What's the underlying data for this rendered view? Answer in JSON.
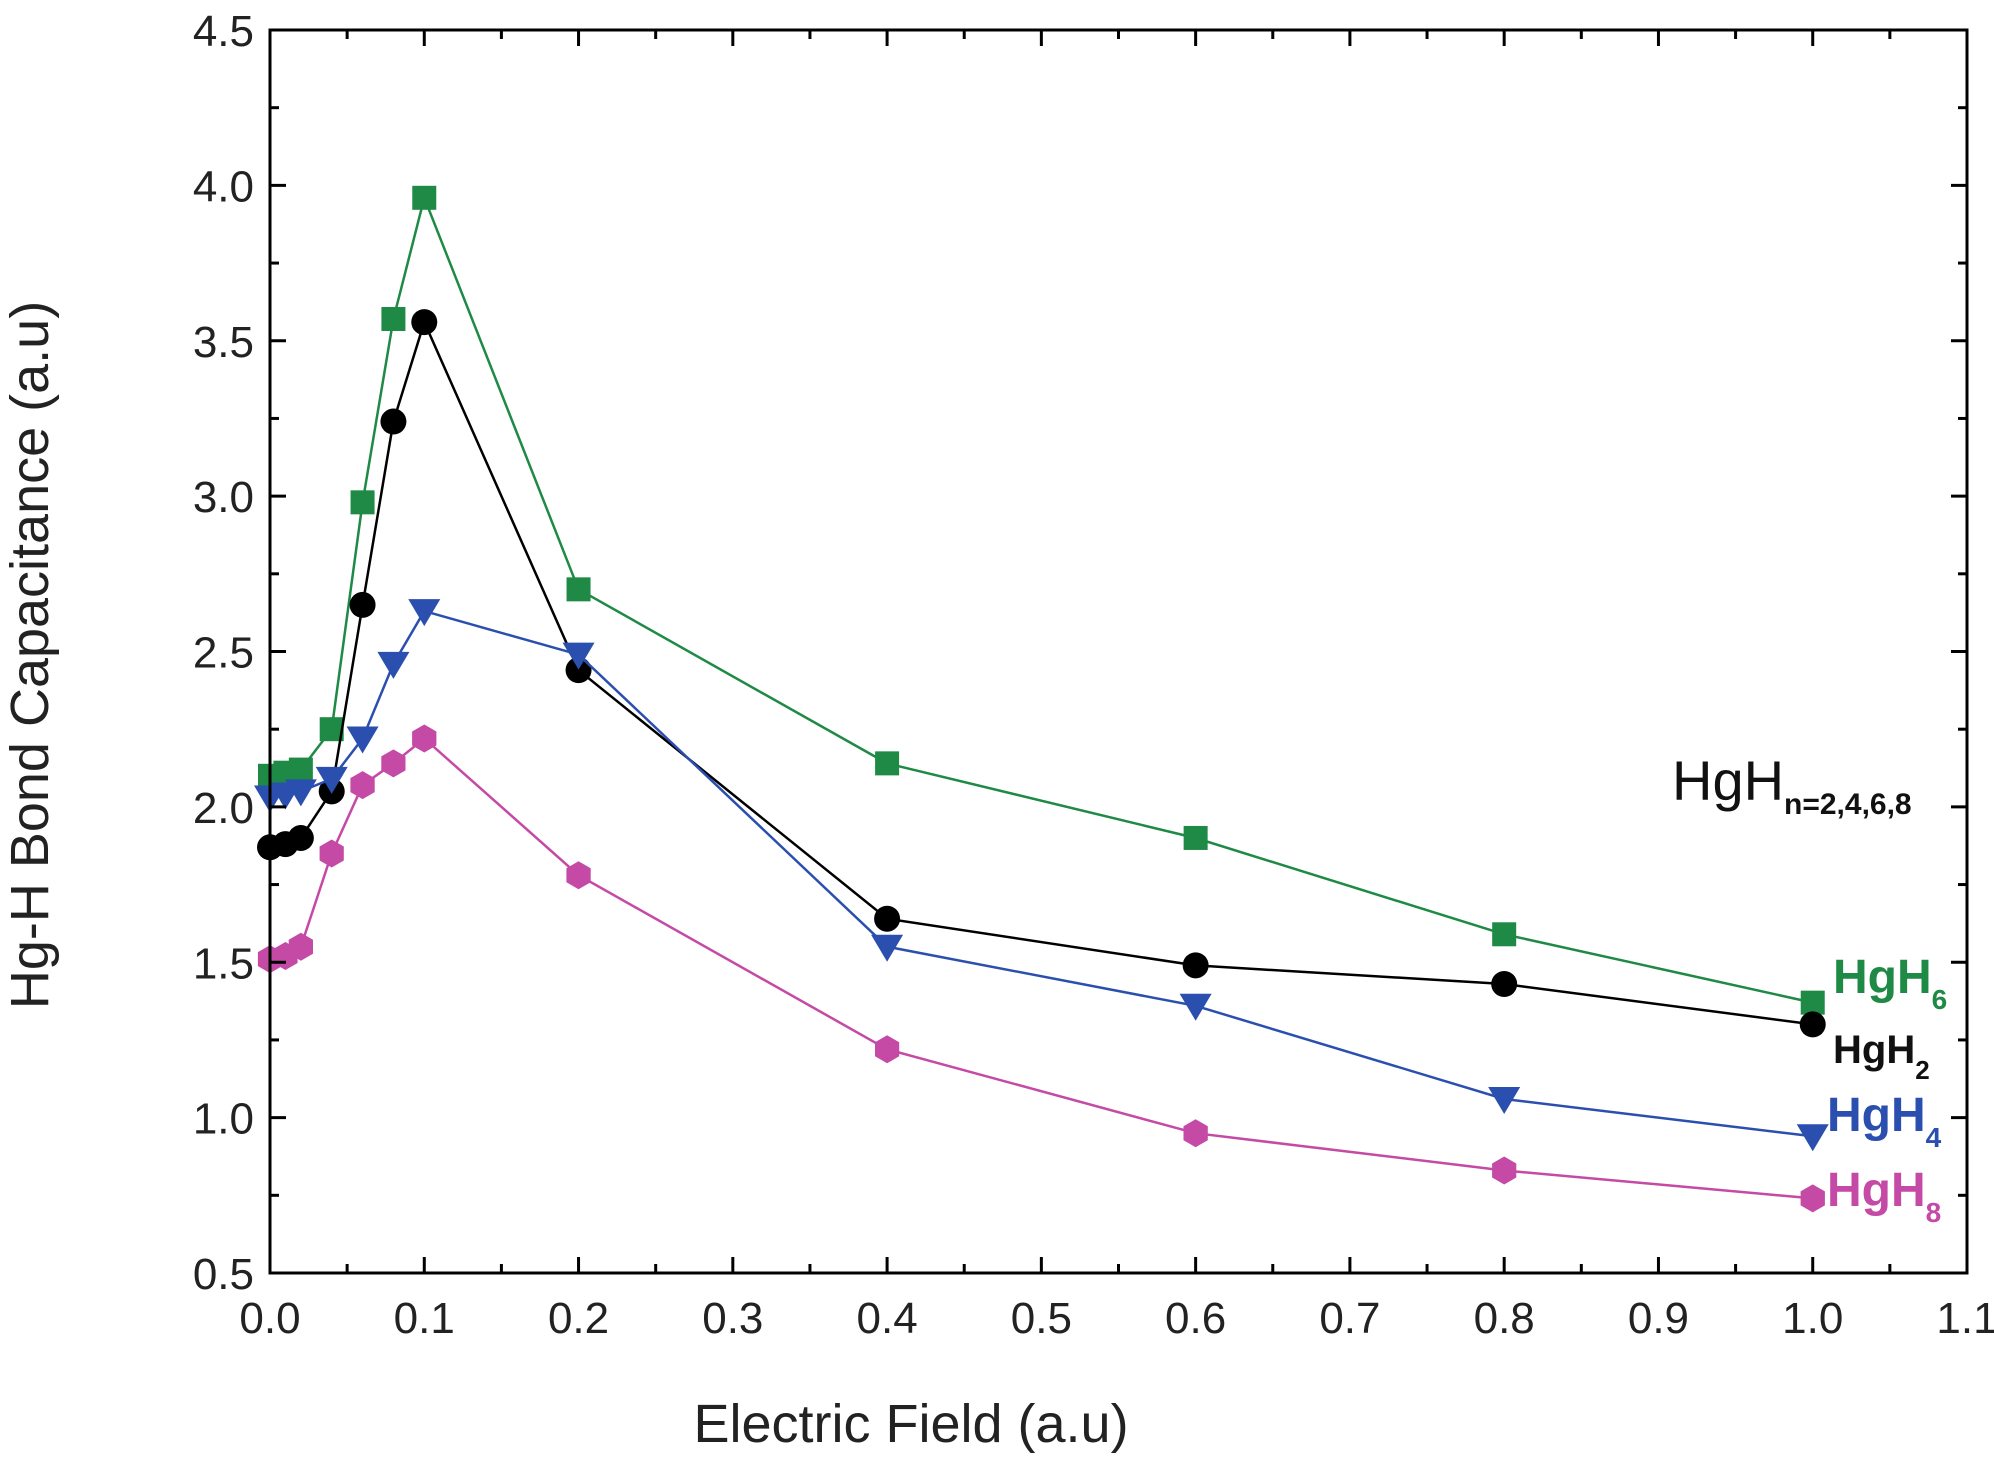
{
  "chart_data": {
    "type": "line",
    "xlabel": "Electric Field (a.u)",
    "ylabel": "Hg-H Bond Capacitance (a.u)",
    "xlim": [
      0.0,
      1.1
    ],
    "ylim": [
      0.5,
      4.5
    ],
    "x_ticks": [
      "0.0",
      "0.1",
      "0.2",
      "0.3",
      "0.4",
      "0.5",
      "0.6",
      "0.7",
      "0.8",
      "0.9",
      "1.0",
      "1.1"
    ],
    "y_ticks": [
      "0.5",
      "1.0",
      "1.5",
      "2.0",
      "2.5",
      "3.0",
      "3.5",
      "4.0",
      "4.5"
    ],
    "annotation": {
      "base": "HgH",
      "sub": "n=2,4,6,8"
    },
    "x": [
      0.0,
      0.01,
      0.02,
      0.04,
      0.06,
      0.08,
      0.1,
      0.2,
      0.4,
      0.6,
      0.8,
      1.0
    ],
    "series": [
      {
        "label_base": "HgH",
        "label_sub": "6",
        "color": "#1e8a45",
        "marker": "square",
        "values": [
          2.1,
          2.11,
          2.12,
          2.25,
          2.98,
          3.57,
          3.96,
          2.7,
          2.14,
          1.9,
          1.59,
          1.37
        ]
      },
      {
        "label_base": "HgH",
        "label_sub": "2",
        "color": "#000000",
        "marker": "circle",
        "values": [
          1.87,
          1.88,
          1.9,
          2.05,
          2.65,
          3.24,
          3.56,
          2.44,
          1.64,
          1.49,
          1.43,
          1.3
        ]
      },
      {
        "label_base": "HgH",
        "label_sub": "4",
        "color": "#2b4fae",
        "marker": "triangle-down",
        "values": [
          2.03,
          2.04,
          2.05,
          2.09,
          2.22,
          2.46,
          2.63,
          2.49,
          1.55,
          1.36,
          1.06,
          0.94
        ]
      },
      {
        "label_base": "HgH",
        "label_sub": "8",
        "color": "#c44aa6",
        "marker": "hexagon",
        "values": [
          1.51,
          1.52,
          1.55,
          1.85,
          2.07,
          2.14,
          2.22,
          1.78,
          1.22,
          0.95,
          0.83,
          0.74
        ]
      }
    ]
  }
}
